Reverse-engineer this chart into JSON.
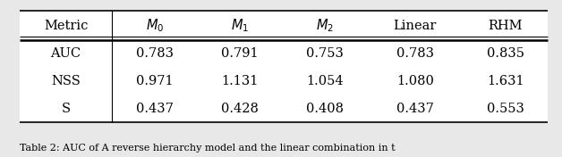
{
  "col_labels": [
    "Metric",
    "$M_0$",
    "$M_1$",
    "$M_2$",
    "Linear",
    "RHM"
  ],
  "rows": [
    [
      "AUC",
      "0.783",
      "0.791",
      "0.753",
      "0.783",
      "0.835"
    ],
    [
      "NSS",
      "0.971",
      "1.131",
      "1.054",
      "1.080",
      "1.631"
    ],
    [
      "S",
      "0.437",
      "0.428",
      "0.408",
      "0.437",
      "0.553"
    ]
  ],
  "bg_color": "#e8e8e8",
  "text_color": "#000000",
  "fontsize": 10.5,
  "caption_fontsize": 8.0,
  "caption": "Table 2: AUC of A reverse hierarchy model and the linear combination in t"
}
